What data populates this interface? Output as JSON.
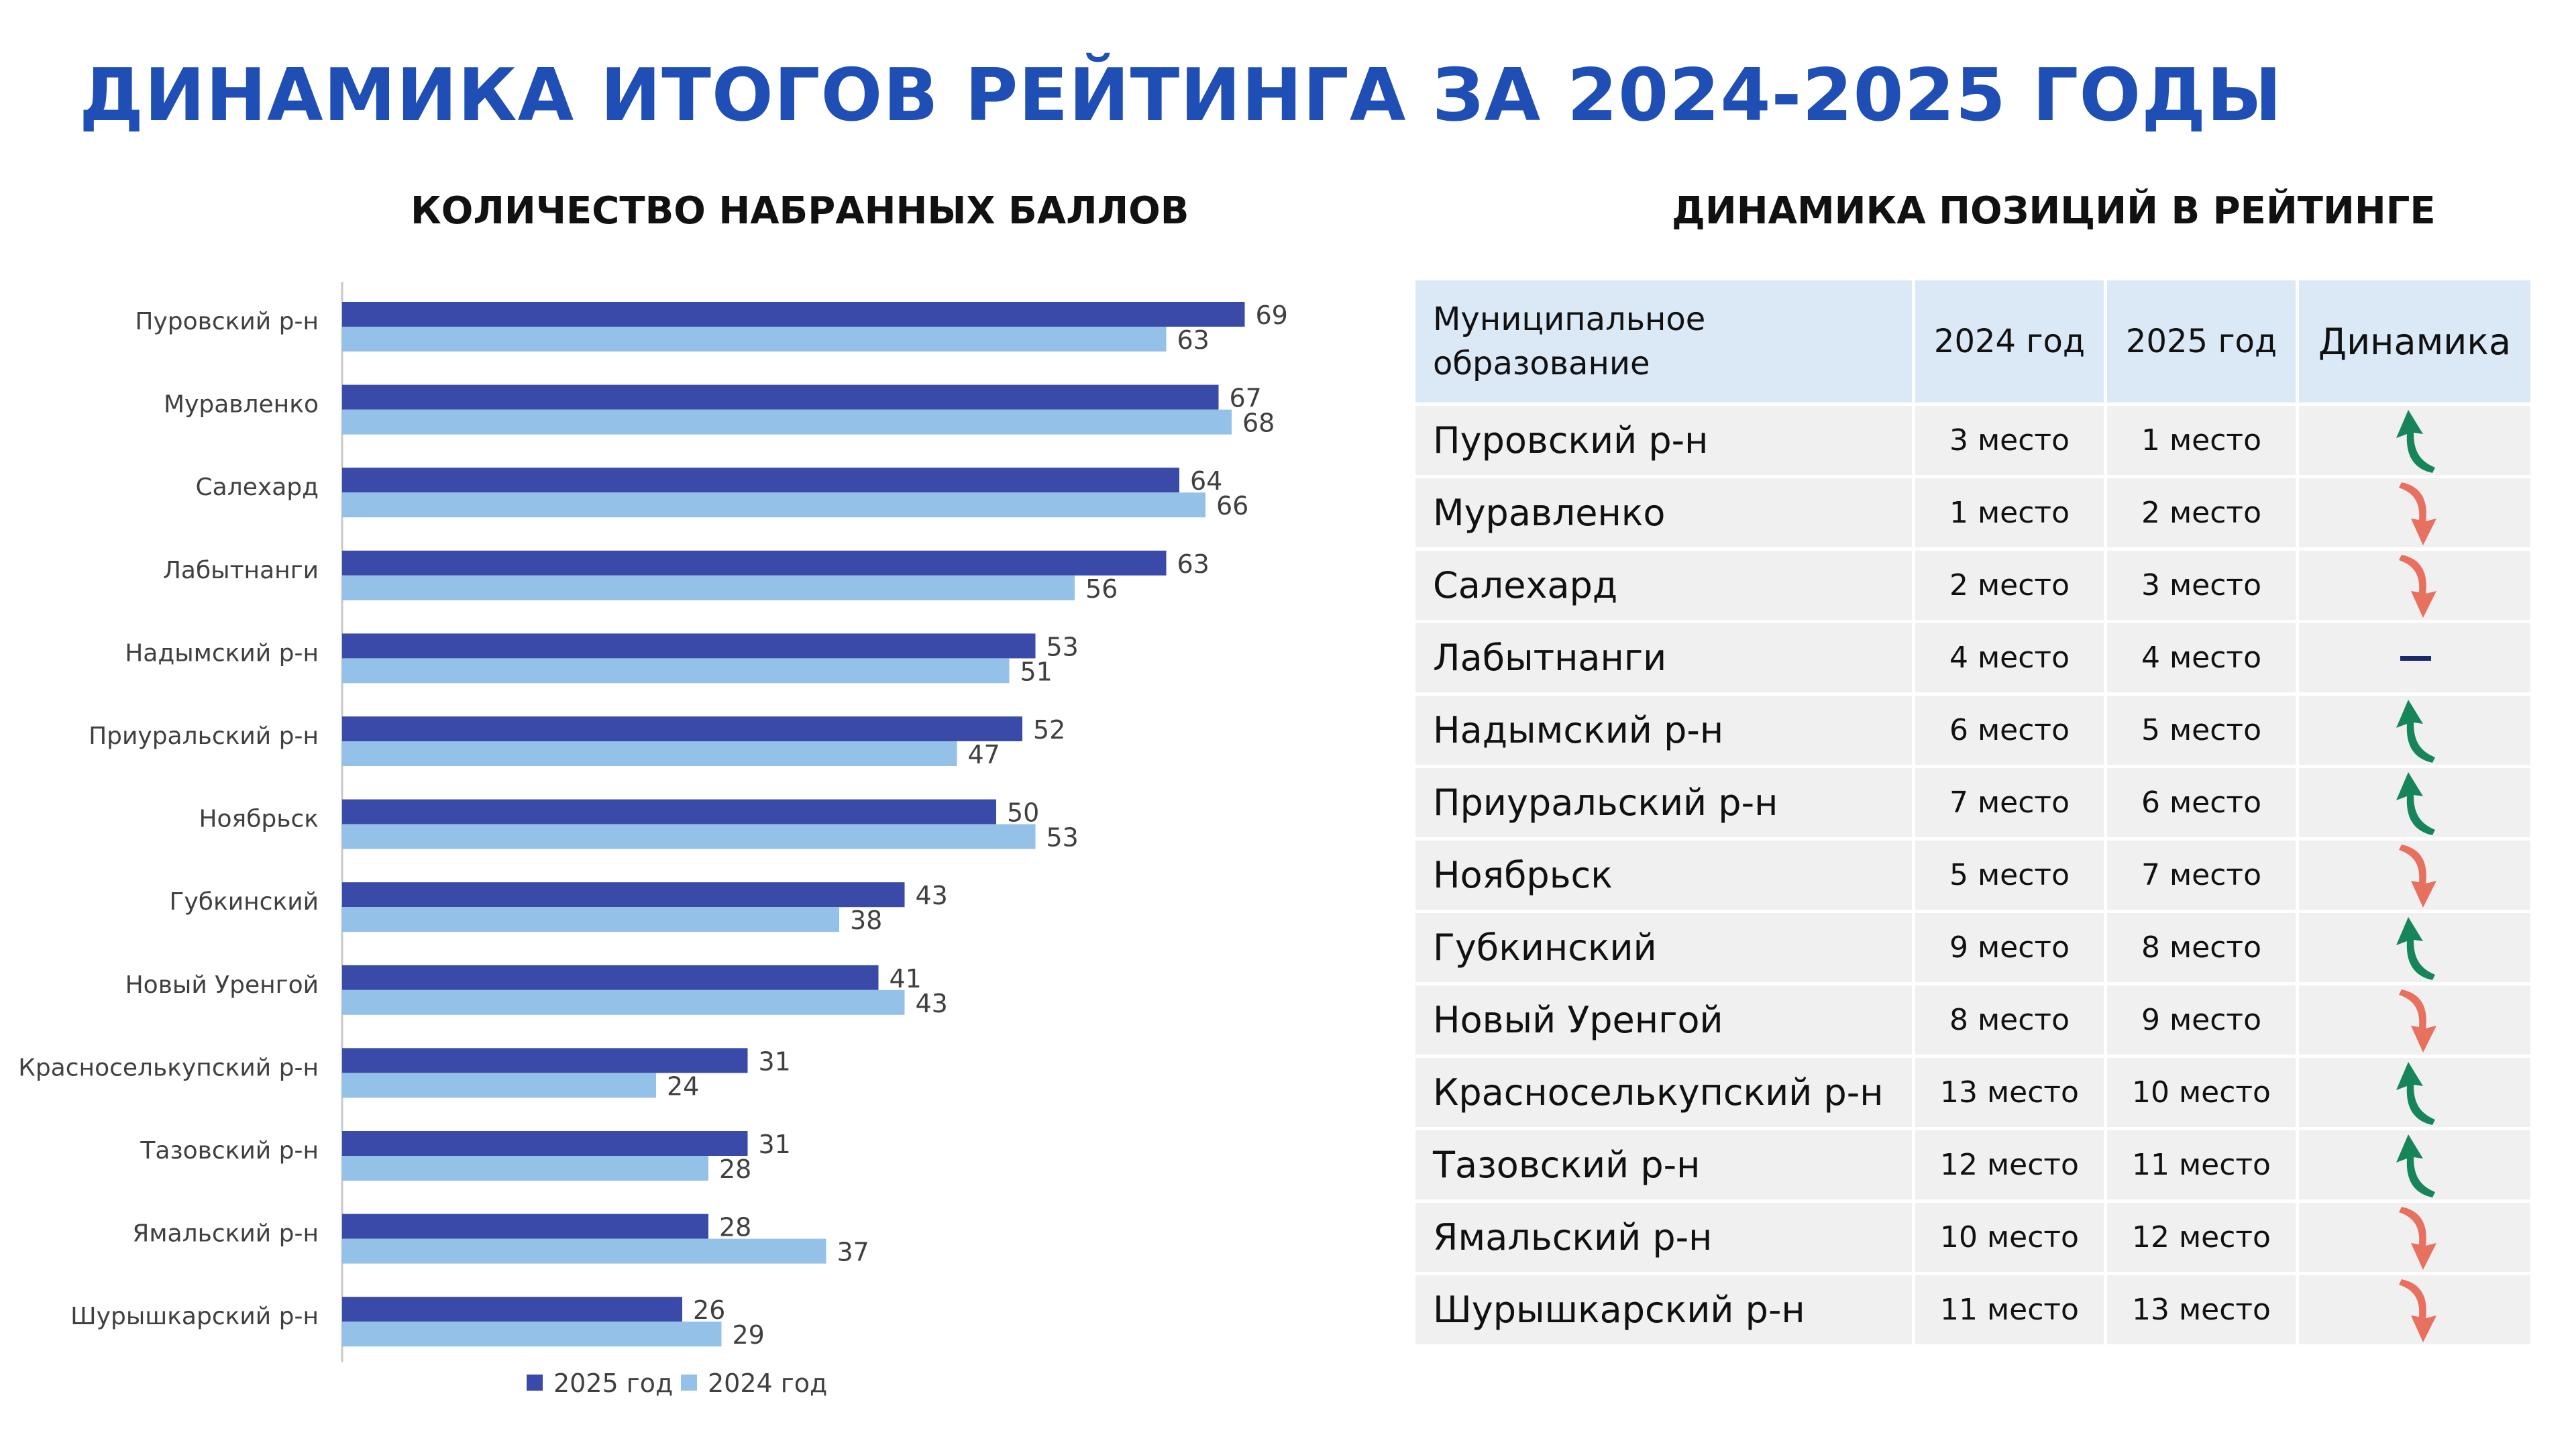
{
  "page": {
    "title": "ДИНАМИКА ИТОГОВ РЕЙТИНГА ЗА 2024-2025 ГОДЫ"
  },
  "left_section": {
    "title": "КОЛИЧЕСТВО НАБРАННЫХ БАЛЛОВ"
  },
  "right_section": {
    "title": "ДИНАМИКА ПОЗИЦИЙ В РЕЙТИНГЕ"
  },
  "chart_data": {
    "type": "bar",
    "orientation": "horizontal",
    "categories": [
      "Пуровский р-н",
      "Муравленко",
      "Салехард",
      "Лабытнанги",
      "Надымский р-н",
      "Приуральский р-н",
      "Ноябрьск",
      "Губкинский",
      "Новый Уренгой",
      "Красноселькупский р-н",
      "Тазовский р-н",
      "Ямальский р-н",
      "Шурышкарский р-н"
    ],
    "series": [
      {
        "name": "2025 год",
        "color": "#3a4aa8",
        "values": [
          69,
          67,
          64,
          63,
          53,
          52,
          50,
          43,
          41,
          31,
          31,
          28,
          26
        ]
      },
      {
        "name": "2024 год",
        "color": "#94c1e8",
        "values": [
          63,
          68,
          66,
          56,
          51,
          47,
          53,
          38,
          43,
          24,
          28,
          37,
          29
        ]
      }
    ],
    "xlim": [
      0,
      80
    ],
    "legend_position": "bottom",
    "data_labels": true,
    "grid": false
  },
  "table": {
    "headers": {
      "municipality": "Муниципальное образование",
      "y2024": "2024 год",
      "y2025": "2025 год",
      "dynamics": "Динамика"
    },
    "rows": [
      {
        "name": "Пуровский р-н",
        "y2024": "3 место",
        "y2025": "1 место",
        "dynamics": "up"
      },
      {
        "name": "Муравленко",
        "y2024": "1 место",
        "y2025": "2 место",
        "dynamics": "down"
      },
      {
        "name": "Салехард",
        "y2024": "2 место",
        "y2025": "3 место",
        "dynamics": "down"
      },
      {
        "name": "Лабытнанги",
        "y2024": "4 место",
        "y2025": "4 место",
        "dynamics": "same"
      },
      {
        "name": "Надымский р-н",
        "y2024": "6 место",
        "y2025": "5 место",
        "dynamics": "up"
      },
      {
        "name": "Приуральский р-н",
        "y2024": "7 место",
        "y2025": "6 место",
        "dynamics": "up"
      },
      {
        "name": "Ноябрьск",
        "y2024": "5 место",
        "y2025": "7 место",
        "dynamics": "down"
      },
      {
        "name": "Губкинский",
        "y2024": "9 место",
        "y2025": "8 место",
        "dynamics": "up"
      },
      {
        "name": "Новый Уренгой",
        "y2024": "8 место",
        "y2025": "9 место",
        "dynamics": "down"
      },
      {
        "name": "Красноселькупский р-н",
        "y2024": "13 место",
        "y2025": "10 место",
        "dynamics": "up"
      },
      {
        "name": "Тазовский р-н",
        "y2024": "12 место",
        "y2025": "11 место",
        "dynamics": "up"
      },
      {
        "name": "Ямальский р-н",
        "y2024": "10 место",
        "y2025": "12 место",
        "dynamics": "down"
      },
      {
        "name": "Шурышкарский р-н",
        "y2024": "11 место",
        "y2025": "13 место",
        "dynamics": "down"
      }
    ]
  },
  "colors": {
    "title": "#1f4fb5",
    "arrow_up": "#16855a",
    "arrow_down": "#e8705f",
    "dash": "#1b2a6b",
    "header_bg": "#dbe9f7",
    "cell_bg": "#f0f0f0"
  },
  "icons": {
    "up": "arrow-up-icon",
    "down": "arrow-down-icon",
    "same": "dash-icon"
  }
}
